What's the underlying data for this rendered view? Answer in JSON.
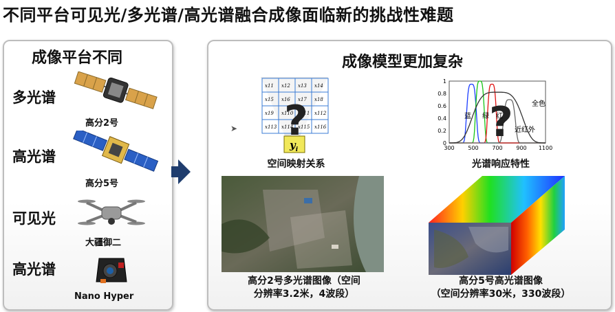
{
  "title": "不同平台可见光/多光谱/高光谱融合成像面临新的挑战性难题",
  "left": {
    "title": "成像平台不同",
    "rows": [
      {
        "type": "多光谱",
        "platform": "高分2号",
        "icon": "satellite-icon"
      },
      {
        "type": "高光谱",
        "platform": "高分5号",
        "icon": "satellite-icon"
      },
      {
        "type": "可见光",
        "platform": "大疆御二",
        "icon": "drone-icon"
      },
      {
        "type": "高光谱",
        "platform": "Nano Hyper",
        "icon": "hyperspectral-camera-icon"
      }
    ]
  },
  "right": {
    "title": "成像模型更加复杂",
    "mapping": {
      "caption": "空间映射关系",
      "cells": [
        "x11",
        "x12",
        "x13",
        "x14",
        "x15",
        "x16",
        "x17",
        "x18",
        "x19",
        "x110",
        "x111",
        "x112",
        "x113",
        "x114",
        "x115",
        "x116"
      ],
      "output": "y",
      "output_sub": "i",
      "question": "?"
    },
    "spectral": {
      "caption": "光谱响应特性",
      "question": "?",
      "yticks": [
        "0",
        "0.2",
        "0.4",
        "0.6",
        "0.8",
        "1"
      ],
      "xticks": [
        "300",
        "500",
        "700",
        "900",
        "1100"
      ],
      "labels": {
        "blue": "蓝",
        "green": "绿",
        "red": "红",
        "pan": "全色",
        "nir": "近红外"
      },
      "colors": {
        "blue": "#1a3cff",
        "green": "#16c416",
        "red": "#e01010",
        "pan": "#333333",
        "nir": "#666666"
      }
    },
    "image_ms": {
      "caption_line1": "高分2号多光谱图像（空间",
      "caption_line2": "分辨率3.2米，4波段）"
    },
    "image_hs": {
      "caption_line1": "高分5号高光谱图像",
      "caption_line2": "（空间分辨率30米，330波段）"
    }
  }
}
